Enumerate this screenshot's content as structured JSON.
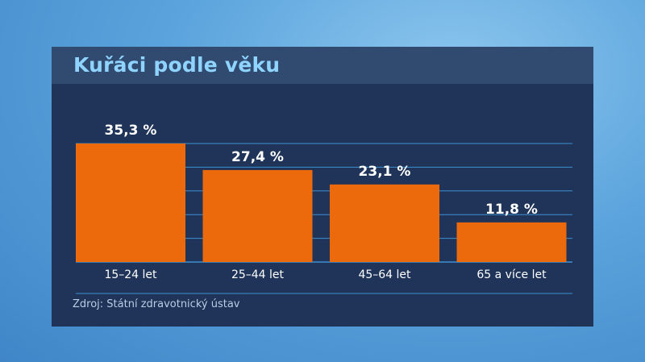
{
  "title": "Kuřáci podle věku",
  "source": "Zdroj: Státní zdravotnický ústav",
  "colors": {
    "bar": "#ec6a0c",
    "panel": "#1f3458",
    "title_bar": "#304a70",
    "title_text": "#8fd4ff",
    "gridline": "#3d8fd0",
    "data_label": "#ffffff",
    "category_label": "#ffffff"
  },
  "chart_data": {
    "type": "bar",
    "categories": [
      "15–24 let",
      "25–44 let",
      "45–64 let",
      "65 a více let"
    ],
    "values": [
      35.3,
      27.4,
      23.1,
      11.8
    ],
    "data_labels": [
      "35,3 %",
      "27,4 %",
      "23,1 %",
      "11,8 %"
    ],
    "ylim": [
      0,
      35.3
    ],
    "grid": true,
    "legend": "none"
  }
}
